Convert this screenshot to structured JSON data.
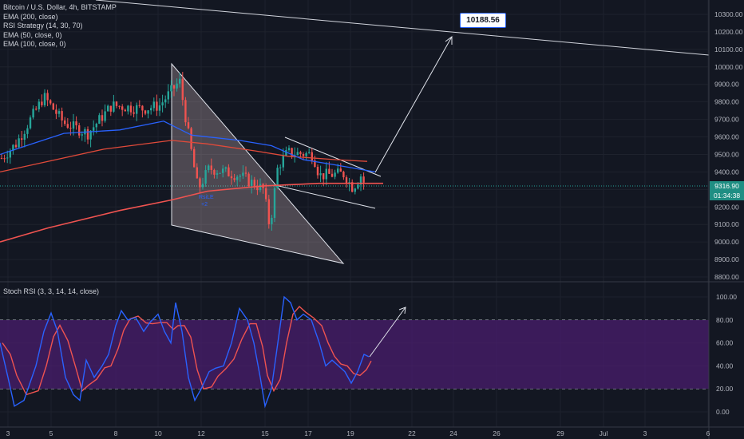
{
  "legend": [
    "Bitcoin / U.S. Dollar, 4h, BITSTAMP",
    "EMA (200, close)",
    "RSI Strategy (14, 30, 70)",
    "EMA (50, close, 0)",
    "EMA (100, close, 0)"
  ],
  "rsi_title": "Stoch RSI (3, 3, 14, 14, close)",
  "price_tag": "9316.90",
  "countdown": "01:34:38",
  "callout": "10188.56",
  "signal_labels": [
    "RsiLE",
    "+2"
  ],
  "colors": {
    "background": "#131722",
    "up": "#26a69a",
    "down": "#ef5350",
    "ema200": "#ef5350",
    "ema50": "#2962ff",
    "ema100": "#e04a3a",
    "rsi_k": "#2962ff",
    "rsi_d": "#ef5350",
    "rsi_band": "#4a1d6e"
  },
  "chart_data": [
    {
      "type": "candlestick",
      "price_axis": [
        "10300.00",
        "10200.00",
        "10100.00",
        "10000.00",
        "9900.00",
        "9800.00",
        "9700.00",
        "9600.00",
        "9500.00",
        "9400.00",
        "9300.00",
        "9200.00",
        "9100.00",
        "9000.00",
        "8900.00",
        "8800.00"
      ],
      "ylim": [
        8780,
        10340
      ],
      "x_ticks": [
        "3",
        "5",
        "8",
        "10",
        "12",
        "15",
        "17",
        "19",
        "22",
        "24",
        "26",
        "29",
        "Jul",
        "3",
        "6"
      ],
      "series": [
        {
          "name": "EMA (200, close)",
          "values": [
            9000,
            9100,
            9220,
            9300,
            9330
          ]
        },
        {
          "name": "EMA (50, close, 0)",
          "values": [
            9500,
            9620,
            9580,
            9420,
            9380
          ]
        },
        {
          "name": "EMA (100, close, 0)",
          "values": [
            9440,
            9560,
            9520,
            9450,
            9340
          ]
        }
      ],
      "annotations": [
        "10188.56"
      ]
    },
    {
      "type": "line",
      "title": "Stoch RSI (3, 3, 14, 14, close)",
      "y_ticks": [
        "100.00",
        "80.00",
        "60.00",
        "40.00",
        "20.00",
        "0.00"
      ],
      "ylim": [
        -8,
        108
      ],
      "bands": [
        20,
        80
      ]
    }
  ]
}
